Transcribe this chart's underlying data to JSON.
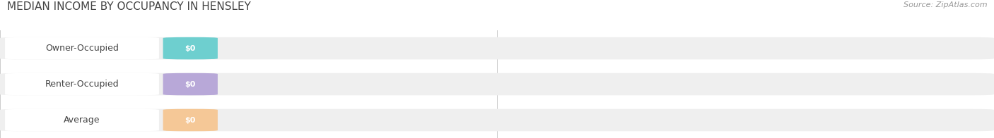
{
  "title": "MEDIAN INCOME BY OCCUPANCY IN HENSLEY",
  "source": "Source: ZipAtlas.com",
  "categories": [
    "Owner-Occupied",
    "Renter-Occupied",
    "Average"
  ],
  "values": [
    0,
    0,
    0
  ],
  "bar_colors": [
    "#6ecfcf",
    "#b8a8d8",
    "#f5c897"
  ],
  "bar_bg_color": "#efefef",
  "fig_bg_color": "#ffffff",
  "title_color": "#444444",
  "source_color": "#999999",
  "label_color": "#444444",
  "value_label_color": "#ffffff",
  "tick_label_color": "#aaaaaa",
  "title_fontsize": 11,
  "source_fontsize": 8,
  "label_fontsize": 9,
  "value_fontsize": 8,
  "tick_fontsize": 8,
  "x_tick_labels": [
    "$0",
    "$0",
    "$0"
  ]
}
